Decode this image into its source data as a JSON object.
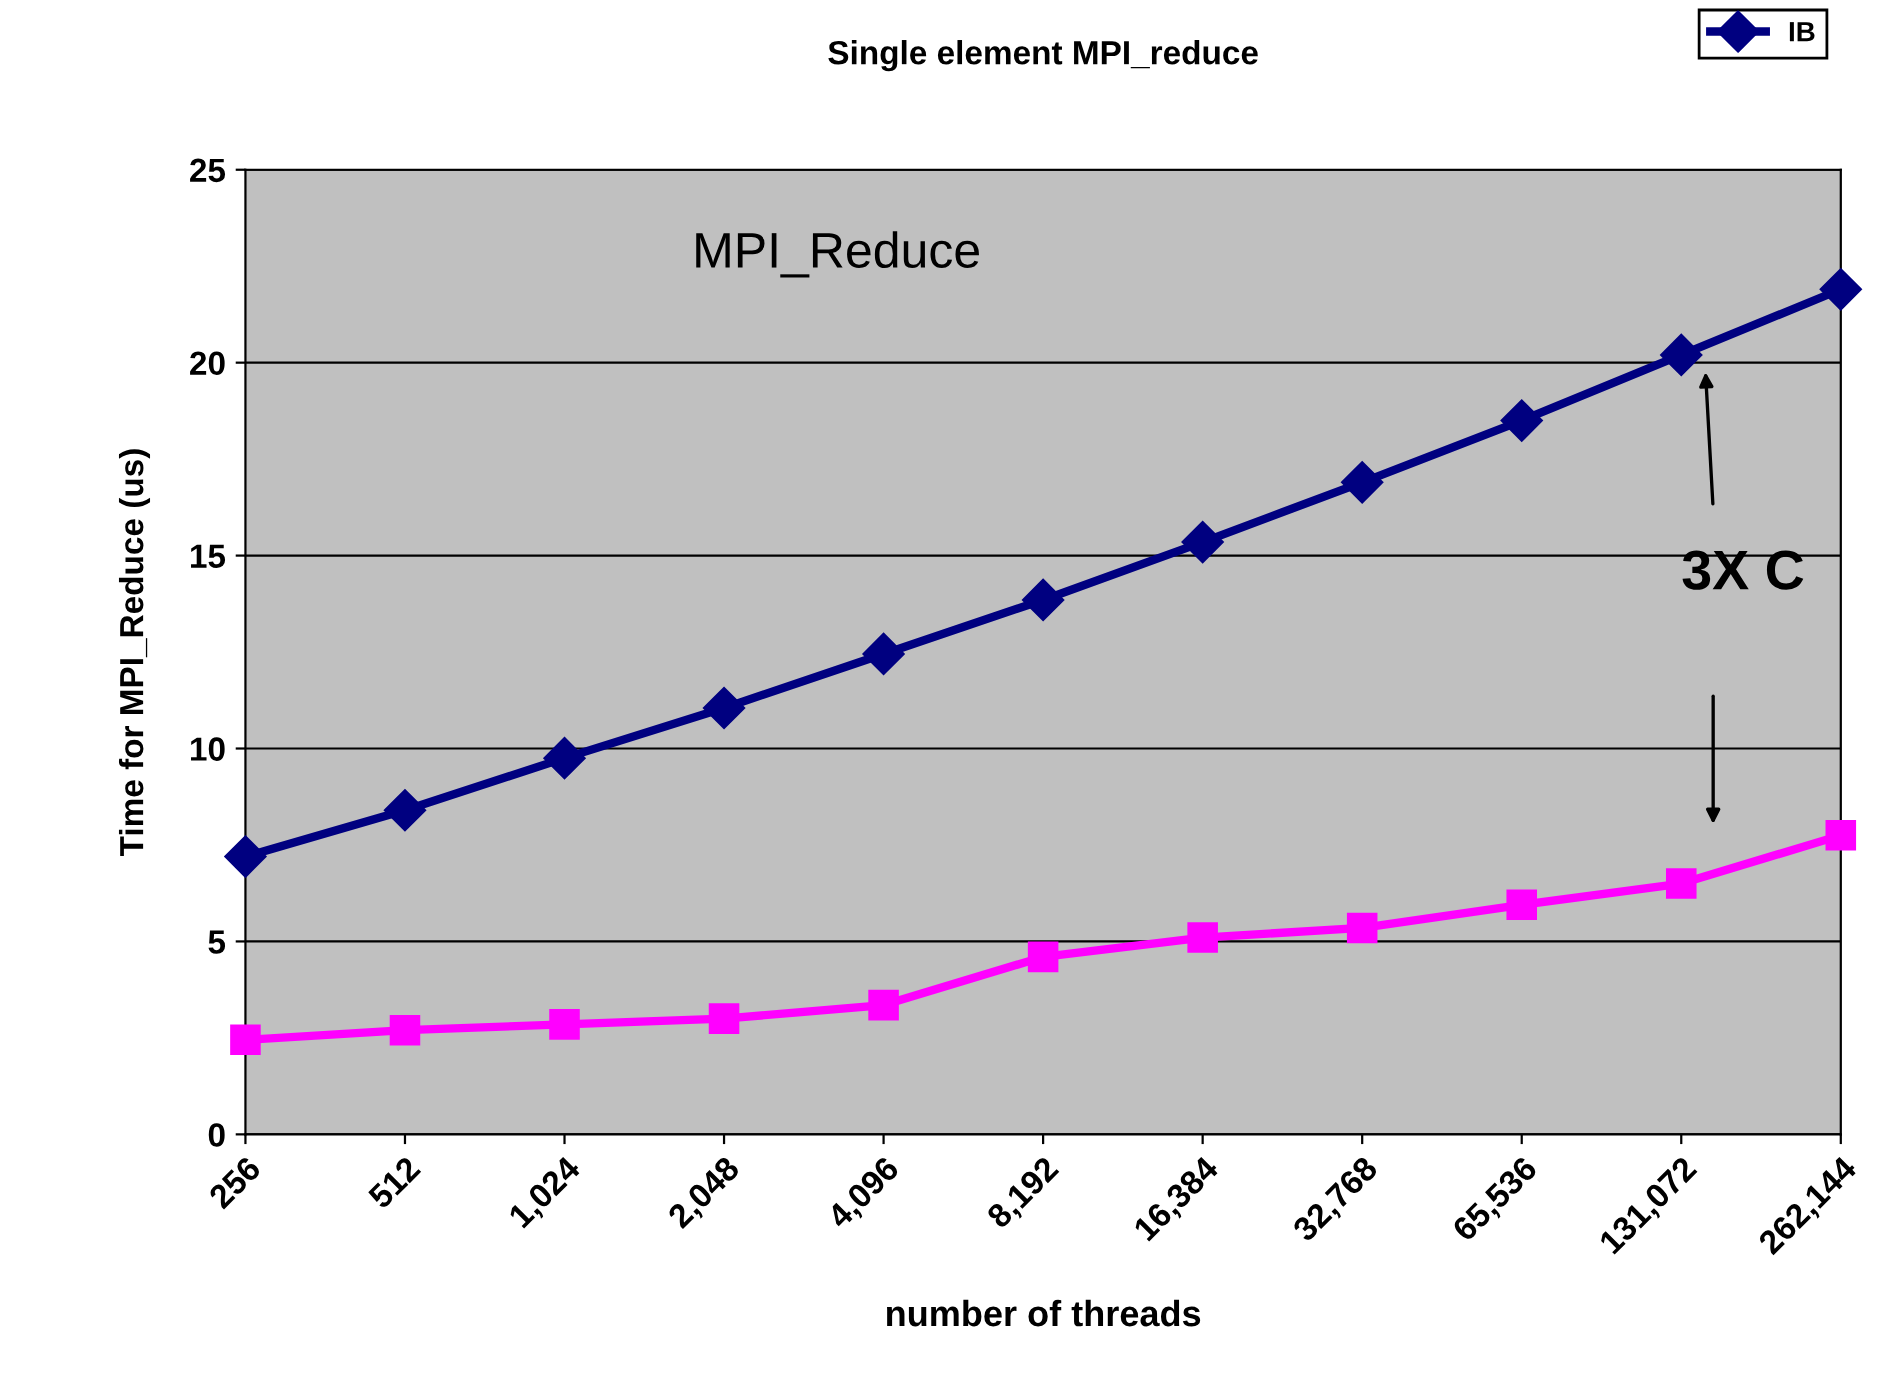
{
  "chart_data": {
    "type": "line",
    "title": "Single element MPI_reduce",
    "xlabel": "number of threads",
    "ylabel": "Time for MPI_Reduce (us)",
    "categories": [
      "256",
      "512",
      "1,024",
      "2,048",
      "4,096",
      "8,192",
      "16,384",
      "32,768",
      "65,536",
      "131,072",
      "262,144"
    ],
    "series": [
      {
        "name": "IB",
        "color": "#000080",
        "marker": "diamond",
        "values": [
          7.2,
          8.4,
          9.75,
          11.05,
          12.45,
          13.85,
          15.35,
          16.9,
          18.5,
          20.2,
          21.9
        ]
      },
      {
        "color": "#ff00ff",
        "marker": "square",
        "values": [
          2.45,
          2.7,
          2.85,
          3.0,
          3.35,
          4.6,
          5.1,
          5.35,
          5.95,
          6.5,
          7.75
        ]
      }
    ],
    "ylim": [
      0,
      25
    ],
    "yticks": [
      0,
      5,
      10,
      15,
      20,
      25
    ],
    "grid": "y",
    "legend": "top right",
    "annotations": [
      "MPI_Reduce",
      "3X C"
    ]
  }
}
